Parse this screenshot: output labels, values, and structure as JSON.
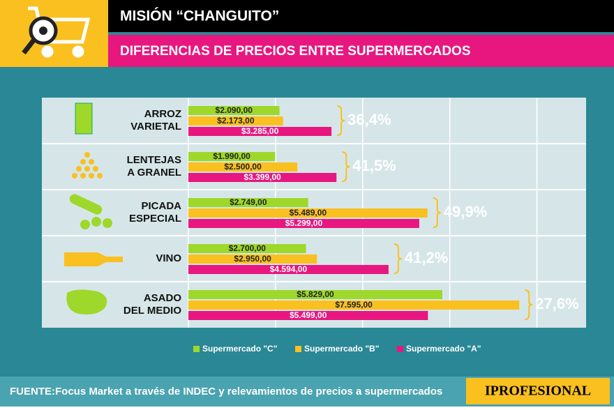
{
  "chart_data": {
    "type": "barh",
    "title": "MISIÓN “CHANGUITO”",
    "subtitle": "DIFERENCIAS DE PRECIOS ENTRE SUPERMERCADOS",
    "categories": [
      [
        "ARROZ",
        "VARIETAL"
      ],
      [
        "LENTEJAS",
        "A GRANEL"
      ],
      [
        "PICADA",
        "ESPECIAL"
      ],
      [
        "VINO"
      ],
      [
        "ASADO",
        "DEL MEDIO"
      ]
    ],
    "series": [
      {
        "name": "Supermercado \"C\"",
        "color": "#9ed82b",
        "values": [
          2090,
          1990,
          2749,
          2700,
          5829
        ],
        "value_labels": [
          "$2.090,00",
          "$1.990,00",
          "$2.749,00",
          "$2.700,00",
          "$5.829,00"
        ]
      },
      {
        "name": "Supermercado \"B\"",
        "color": "#f9c020",
        "values": [
          2173,
          2500,
          5489,
          2950,
          7595
        ],
        "value_labels": [
          "$2.173,00",
          "$2.500,00",
          "$5.489,00",
          "$2.950,00",
          "$7.595,00"
        ]
      },
      {
        "name": "Supermercado \"A\"",
        "color": "#e8177f",
        "values": [
          3285,
          3399,
          5299,
          4594,
          5499
        ],
        "value_labels": [
          "$3.285,00",
          "$3.399,00",
          "$5.299,00",
          "$4.594,00",
          "$5.499,00"
        ]
      }
    ],
    "spread": {
      "values": [
        36.4,
        41.5,
        49.9,
        41.2,
        27.6
      ],
      "value_labels": [
        "36,4%",
        "41,5%",
        "49,9%",
        "41,2%",
        "27,6%"
      ]
    },
    "xlim": [
      0,
      9000
    ],
    "xticks": [
      0,
      2000,
      4000,
      6000,
      8000
    ],
    "grid": true,
    "source": "FUENTE:Focus Market a través de INDEC y relevamientos de precios a supermercados",
    "logo": "IPROFESIONAL"
  }
}
